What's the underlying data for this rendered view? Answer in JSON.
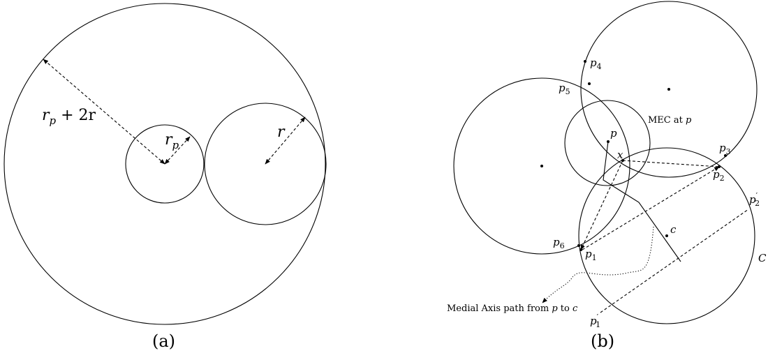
{
  "panel_a": {
    "caption": "(a)",
    "labels": {
      "big_radius": "r",
      "big_radius_sub": "p",
      "big_radius_rest": " + 2r",
      "small_radius": "r",
      "small_radius_sub": "p",
      "mid_radius": "r"
    }
  },
  "panel_b": {
    "caption": "(b)",
    "labels": {
      "p": "p",
      "x": "x",
      "c": "c",
      "C": "C",
      "p1": "p",
      "p1_sub": "1",
      "p2": "p",
      "p2_sub": "2",
      "p3": "p",
      "p3_sub": "3",
      "p4": "p",
      "p4_sub": "4",
      "p5": "p",
      "p5_sub": "5",
      "p6": "p",
      "p6_sub": "6",
      "p1prime": "p",
      "p1prime_sub": "1",
      "p1prime_sup": "′",
      "p2prime": "p",
      "p2prime_sub": "2",
      "p2prime_sup": "′",
      "mec_text": "MEC at ",
      "mec_var": "p",
      "path_text": "Medial Axis path from ",
      "path_from": "p",
      "path_mid": " to ",
      "path_to": "c"
    }
  }
}
